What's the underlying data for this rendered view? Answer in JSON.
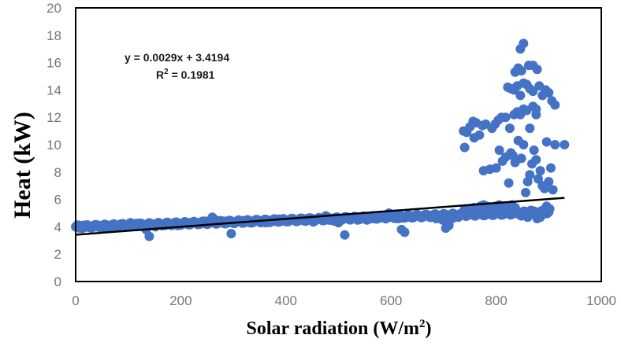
{
  "chart_data": {
    "type": "scatter",
    "title": "",
    "xlabel": "Solar radiation (W/m²)",
    "xlabel_main": "Solar radiation (W/m",
    "xlabel_sup": "2",
    "xlabel_end": ")",
    "ylabel": "Heat (kW)",
    "xlim": [
      0,
      1000
    ],
    "ylim": [
      0,
      20
    ],
    "xticks": [
      0,
      200,
      400,
      600,
      800,
      1000
    ],
    "yticks": [
      0,
      2,
      4,
      6,
      8,
      10,
      12,
      14,
      16,
      18,
      20
    ],
    "grid": false,
    "legend": "none",
    "marker_color": "#4472C4",
    "trendline": {
      "type": "linear",
      "slope": 0.0029,
      "intercept": 3.4194,
      "x_range": [
        0,
        930
      ],
      "color": "#000000",
      "equation_label": "y = 0.0029x + 3.4194",
      "r2_label_main": "R",
      "r2_label_sup": "2",
      "r2_label_rest": " = 0.1981"
    },
    "series": [
      {
        "name": "Heat",
        "points": [
          [
            2,
            4.0
          ],
          [
            8,
            3.9
          ],
          [
            14,
            4.1
          ],
          [
            20,
            4.0
          ],
          [
            26,
            3.95
          ],
          [
            32,
            4.05
          ],
          [
            38,
            4.0
          ],
          [
            44,
            4.1
          ],
          [
            50,
            4.0
          ],
          [
            56,
            3.9
          ],
          [
            62,
            4.05
          ],
          [
            68,
            4.0
          ],
          [
            74,
            4.1
          ],
          [
            80,
            4.05
          ],
          [
            86,
            4.2
          ],
          [
            92,
            4.15
          ],
          [
            98,
            4.1
          ],
          [
            104,
            4.3
          ],
          [
            110,
            4.2
          ],
          [
            116,
            4.25
          ],
          [
            122,
            4.1
          ],
          [
            128,
            4.0
          ],
          [
            134,
            3.8
          ],
          [
            140,
            3.3
          ],
          [
            146,
            4.1
          ],
          [
            152,
            4.0
          ],
          [
            158,
            4.2
          ],
          [
            164,
            4.15
          ],
          [
            170,
            4.1
          ],
          [
            176,
            4.25
          ],
          [
            182,
            4.2
          ],
          [
            188,
            4.3
          ],
          [
            194,
            4.1
          ],
          [
            200,
            4.2
          ],
          [
            206,
            4.25
          ],
          [
            212,
            4.2
          ],
          [
            218,
            4.3
          ],
          [
            224,
            4.35
          ],
          [
            230,
            4.3
          ],
          [
            236,
            4.2
          ],
          [
            242,
            4.25
          ],
          [
            248,
            4.4
          ],
          [
            254,
            4.3
          ],
          [
            260,
            4.7
          ],
          [
            266,
            4.5
          ],
          [
            272,
            4.35
          ],
          [
            278,
            4.3
          ],
          [
            284,
            4.4
          ],
          [
            290,
            4.3
          ],
          [
            296,
            3.5
          ],
          [
            302,
            4.3
          ],
          [
            308,
            4.4
          ],
          [
            314,
            4.35
          ],
          [
            320,
            4.45
          ],
          [
            326,
            4.4
          ],
          [
            332,
            4.3
          ],
          [
            338,
            4.4
          ],
          [
            344,
            4.5
          ],
          [
            350,
            4.45
          ],
          [
            356,
            4.4
          ],
          [
            362,
            4.3
          ],
          [
            368,
            4.45
          ],
          [
            374,
            4.5
          ],
          [
            380,
            4.4
          ],
          [
            386,
            4.55
          ],
          [
            392,
            4.5
          ],
          [
            398,
            4.4
          ],
          [
            404,
            4.5
          ],
          [
            410,
            4.6
          ],
          [
            416,
            4.5
          ],
          [
            422,
            4.4
          ],
          [
            428,
            4.55
          ],
          [
            434,
            4.45
          ],
          [
            440,
            4.6
          ],
          [
            446,
            4.5
          ],
          [
            452,
            4.35
          ],
          [
            458,
            4.5
          ],
          [
            464,
            4.6
          ],
          [
            470,
            4.55
          ],
          [
            476,
            4.8
          ],
          [
            482,
            4.5
          ],
          [
            488,
            4.6
          ],
          [
            494,
            4.4
          ],
          [
            500,
            4.3
          ],
          [
            506,
            4.5
          ],
          [
            512,
            3.4
          ],
          [
            518,
            4.6
          ],
          [
            524,
            4.55
          ],
          [
            530,
            4.7
          ],
          [
            536,
            4.5
          ],
          [
            542,
            4.65
          ],
          [
            548,
            4.6
          ],
          [
            554,
            4.5
          ],
          [
            560,
            4.7
          ],
          [
            566,
            4.6
          ],
          [
            572,
            4.75
          ],
          [
            578,
            4.65
          ],
          [
            584,
            4.7
          ],
          [
            590,
            4.8
          ],
          [
            596,
            5.0
          ],
          [
            602,
            4.7
          ],
          [
            608,
            4.8
          ],
          [
            614,
            4.6
          ],
          [
            620,
            3.8
          ],
          [
            626,
            3.6
          ],
          [
            632,
            4.7
          ],
          [
            638,
            4.8
          ],
          [
            644,
            4.75
          ],
          [
            650,
            4.9
          ],
          [
            656,
            4.7
          ],
          [
            662,
            4.8
          ],
          [
            668,
            4.9
          ],
          [
            674,
            4.7
          ],
          [
            680,
            4.75
          ],
          [
            686,
            4.6
          ],
          [
            692,
            4.8
          ],
          [
            698,
            4.5
          ],
          [
            704,
            3.9
          ],
          [
            710,
            4.1
          ],
          [
            716,
            4.6
          ],
          [
            722,
            4.9
          ],
          [
            728,
            4.7
          ],
          [
            734,
            5.0
          ],
          [
            740,
            5.3
          ],
          [
            746,
            5.2
          ],
          [
            752,
            5.1
          ],
          [
            758,
            5.4
          ],
          [
            764,
            5.3
          ],
          [
            770,
            5.5
          ],
          [
            776,
            5.6
          ],
          [
            782,
            5.5
          ],
          [
            788,
            5.4
          ],
          [
            794,
            5.3
          ],
          [
            800,
            5.5
          ],
          [
            806,
            5.6
          ],
          [
            812,
            5.4
          ],
          [
            818,
            5.5
          ],
          [
            824,
            5.3
          ],
          [
            830,
            5.6
          ],
          [
            836,
            5.4
          ],
          [
            842,
            5.1
          ],
          [
            848,
            4.8
          ],
          [
            854,
            5.0
          ],
          [
            860,
            4.7
          ],
          [
            866,
            5.2
          ],
          [
            872,
            5.0
          ],
          [
            878,
            4.6
          ],
          [
            884,
            4.7
          ],
          [
            890,
            5.0
          ],
          [
            896,
            5.5
          ],
          [
            902,
            5.3
          ],
          [
            738,
            11.0
          ],
          [
            744,
            10.9
          ],
          [
            750,
            11.3
          ],
          [
            756,
            11.7
          ],
          [
            762,
            11.6
          ],
          [
            768,
            10.7
          ],
          [
            774,
            11.4
          ],
          [
            780,
            11.5
          ],
          [
            792,
            11.2
          ],
          [
            798,
            11.5
          ],
          [
            804,
            11.8
          ],
          [
            810,
            12.0
          ],
          [
            818,
            12.0
          ],
          [
            826,
            11.2
          ],
          [
            834,
            12.2
          ],
          [
            840,
            12.4
          ],
          [
            846,
            12.2
          ],
          [
            852,
            12.6
          ],
          [
            858,
            12.5
          ],
          [
            864,
            11.2
          ],
          [
            870,
            12.8
          ],
          [
            876,
            12.6
          ],
          [
            740,
            9.8
          ],
          [
            758,
            10.5
          ],
          [
            776,
            8.1
          ],
          [
            788,
            8.2
          ],
          [
            800,
            8.3
          ],
          [
            806,
            9.6
          ],
          [
            812,
            8.8
          ],
          [
            818,
            9.1
          ],
          [
            824,
            7.2
          ],
          [
            828,
            9.4
          ],
          [
            832,
            9.2
          ],
          [
            836,
            8.7
          ],
          [
            842,
            10.3
          ],
          [
            848,
            9.0
          ],
          [
            852,
            10.0
          ],
          [
            856,
            6.5
          ],
          [
            860,
            7.3
          ],
          [
            864,
            7.8
          ],
          [
            868,
            8.6
          ],
          [
            872,
            9.6
          ],
          [
            876,
            8.9
          ],
          [
            880,
            7.5
          ],
          [
            884,
            8.1
          ],
          [
            888,
            7.0
          ],
          [
            892,
            6.8
          ],
          [
            896,
            10.2
          ],
          [
            900,
            7.3
          ],
          [
            904,
            8.3
          ],
          [
            908,
            6.7
          ],
          [
            912,
            10.0
          ],
          [
            930,
            10.0
          ],
          [
            822,
            14.2
          ],
          [
            828,
            14.1
          ],
          [
            834,
            14.0
          ],
          [
            840,
            14.3
          ],
          [
            846,
            13.6
          ],
          [
            852,
            14.5
          ],
          [
            858,
            14.4
          ],
          [
            864,
            14.1
          ],
          [
            870,
            13.9
          ],
          [
            876,
            12.2
          ],
          [
            882,
            14.3
          ],
          [
            888,
            13.6
          ],
          [
            894,
            14.0
          ],
          [
            900,
            13.8
          ],
          [
            906,
            13.2
          ],
          [
            912,
            12.9
          ],
          [
            836,
            15.3
          ],
          [
            842,
            15.6
          ],
          [
            848,
            15.4
          ],
          [
            862,
            15.8
          ],
          [
            870,
            15.8
          ],
          [
            878,
            15.5
          ],
          [
            846,
            17.0
          ],
          [
            852,
            17.4
          ]
        ]
      }
    ]
  }
}
